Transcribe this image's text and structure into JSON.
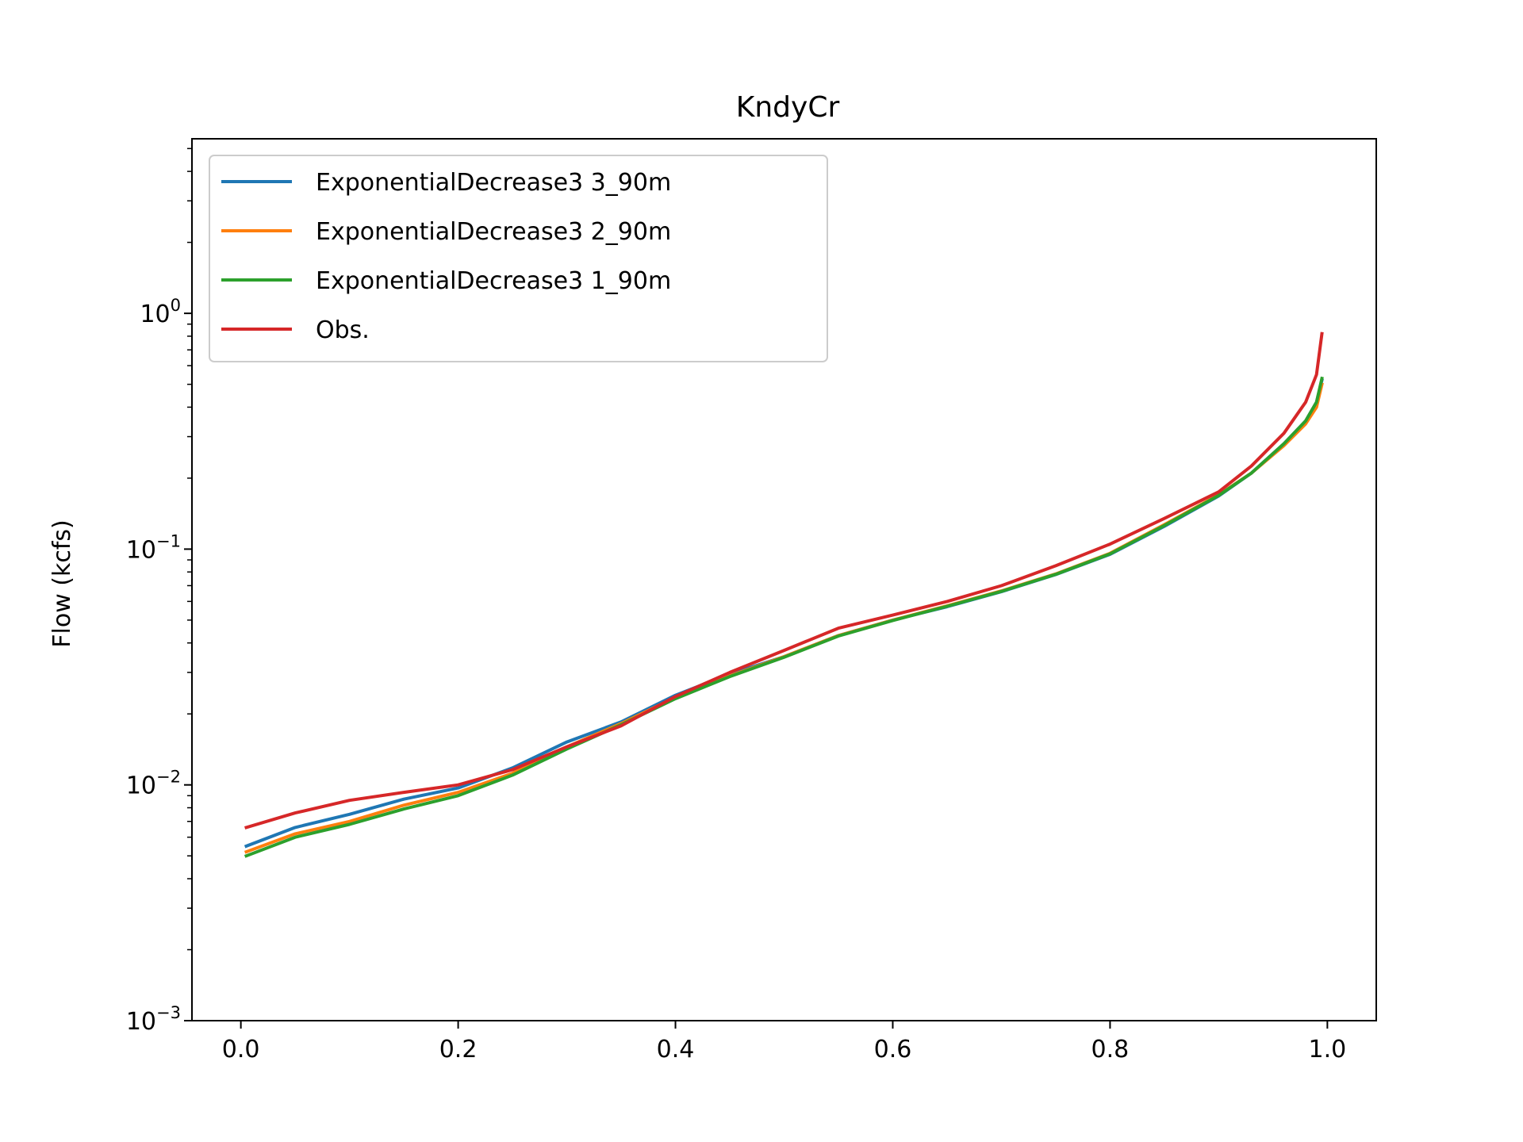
{
  "chart_data": {
    "type": "line",
    "title": "KndyCr",
    "xlabel": "",
    "ylabel": "Flow (kcfs)",
    "xlim": [
      -0.045,
      1.045
    ],
    "ylim": [
      0.001,
      5.5
    ],
    "yscale": "log",
    "grid": false,
    "legend_position": "top-left",
    "x_ticks": [
      {
        "value": 0.0,
        "label": "0.0"
      },
      {
        "value": 0.2,
        "label": "0.2"
      },
      {
        "value": 0.4,
        "label": "0.4"
      },
      {
        "value": 0.6,
        "label": "0.6"
      },
      {
        "value": 0.8,
        "label": "0.8"
      },
      {
        "value": 1.0,
        "label": "1.0"
      }
    ],
    "y_ticks": [
      {
        "value": 0.001,
        "base": "10",
        "exp": "−3"
      },
      {
        "value": 0.01,
        "base": "10",
        "exp": "−2"
      },
      {
        "value": 0.1,
        "base": "10",
        "exp": "−1"
      },
      {
        "value": 1,
        "base": "10",
        "exp": "0"
      }
    ],
    "x": [
      0.005,
      0.05,
      0.1,
      0.15,
      0.2,
      0.25,
      0.3,
      0.35,
      0.4,
      0.45,
      0.5,
      0.55,
      0.6,
      0.65,
      0.7,
      0.75,
      0.8,
      0.85,
      0.9,
      0.93,
      0.96,
      0.98,
      0.99,
      0.995
    ],
    "series": [
      {
        "name": "ExponentialDecrease3 3_90m",
        "color": "#1f77b4",
        "values": [
          0.0055,
          0.0066,
          0.0075,
          0.0087,
          0.0097,
          0.0118,
          0.0152,
          0.0185,
          0.024,
          0.0295,
          0.035,
          0.043,
          0.05,
          0.057,
          0.066,
          0.078,
          0.095,
          0.125,
          0.168,
          0.21,
          0.28,
          0.35,
          0.42,
          0.52
        ]
      },
      {
        "name": "ExponentialDecrease3 2_90m",
        "color": "#ff7f0e",
        "values": [
          0.0052,
          0.0062,
          0.007,
          0.0082,
          0.0093,
          0.0112,
          0.0145,
          0.0182,
          0.0235,
          0.029,
          0.035,
          0.043,
          0.05,
          0.0575,
          0.0665,
          0.0785,
          0.096,
          0.127,
          0.17,
          0.21,
          0.275,
          0.34,
          0.4,
          0.5
        ]
      },
      {
        "name": "ExponentialDecrease3 1_90m",
        "color": "#2ca02c",
        "values": [
          0.005,
          0.006,
          0.0068,
          0.0079,
          0.009,
          0.011,
          0.0142,
          0.018,
          0.0232,
          0.0288,
          0.0348,
          0.0428,
          0.0498,
          0.0572,
          0.0662,
          0.0782,
          0.0955,
          0.126,
          0.169,
          0.21,
          0.28,
          0.35,
          0.42,
          0.53
        ]
      },
      {
        "name": "Obs.",
        "color": "#d62728",
        "values": [
          0.0066,
          0.0076,
          0.0086,
          0.0093,
          0.01,
          0.0116,
          0.0145,
          0.0178,
          0.0237,
          0.03,
          0.0372,
          0.0462,
          0.0525,
          0.06,
          0.07,
          0.085,
          0.105,
          0.135,
          0.175,
          0.225,
          0.31,
          0.42,
          0.55,
          0.82
        ]
      }
    ]
  }
}
